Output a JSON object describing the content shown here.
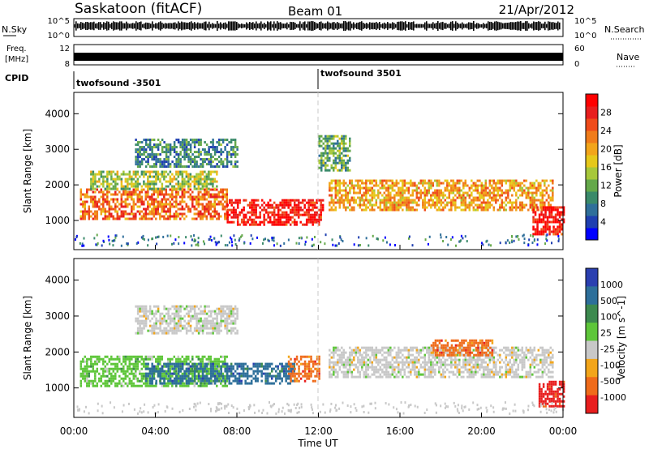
{
  "header": {
    "station": "Saskatoon (fitACF)",
    "beam": "Beam 01",
    "date": "21/Apr/2012"
  },
  "noise_panel": {
    "left_label": "N.Sky",
    "right_label": "N.Search",
    "ticks_left": [
      "10^5",
      "10^0"
    ],
    "ticks_right": [
      "10^5",
      "10^0"
    ]
  },
  "freq_panel": {
    "label_line1": "Freq.",
    "label_line2": "[MHz]",
    "ticks_left": [
      "12",
      "8"
    ],
    "ticks_right": [
      "60",
      "0"
    ],
    "nave_label": "Nave"
  },
  "cpid_panel": {
    "label": "CPID",
    "programs": [
      {
        "name": "twofsound -3501",
        "start_hour": 0
      },
      {
        "name": "twofsound 3501",
        "start_hour": 12
      }
    ]
  },
  "x_axis": {
    "label": "Time UT",
    "ticks": [
      {
        "hour": 0,
        "label": "00:00"
      },
      {
        "hour": 4,
        "label": "04:00"
      },
      {
        "hour": 8,
        "label": "08:00"
      },
      {
        "hour": 12,
        "label": "12:00"
      },
      {
        "hour": 16,
        "label": "16:00"
      },
      {
        "hour": 20,
        "label": "20:00"
      },
      {
        "hour": 24,
        "label": "00:00"
      }
    ]
  },
  "chart_data": [
    {
      "type": "heatmap",
      "quantity": "Power",
      "ylabel": "Slant Range [km]",
      "yticks": [
        1000,
        2000,
        3000,
        4000
      ],
      "ylim": [
        180,
        4600
      ],
      "xlim_hours": [
        0,
        24
      ],
      "colorbar": {
        "label": "Power [dB]",
        "ticks": [
          "4",
          "8",
          "12",
          "16",
          "20",
          "24",
          "28"
        ],
        "colors": [
          "#0000ff",
          "#1f3fb0",
          "#2f6f9a",
          "#3a8a6a",
          "#64a84a",
          "#a7c83a",
          "#e6c81a",
          "#f2a51a",
          "#f07c1a",
          "#ef4b1a",
          "#e81e1e",
          "#ff0000"
        ]
      },
      "bands": [
        {
          "hour_start": 0.3,
          "hour_end": 7.5,
          "range_low": 1050,
          "range_high": 1900,
          "level": 0.75
        },
        {
          "hour_start": 7.5,
          "hour_end": 12.2,
          "range_low": 900,
          "range_high": 1600,
          "level": 0.95
        },
        {
          "hour_start": 0.8,
          "hour_end": 7.0,
          "range_low": 1900,
          "range_high": 2400,
          "level": 0.45
        },
        {
          "hour_start": 12.5,
          "hour_end": 23.5,
          "range_low": 1300,
          "range_high": 2150,
          "level": 0.65
        },
        {
          "hour_start": 3.0,
          "hour_end": 8.0,
          "range_low": 2500,
          "range_high": 3300,
          "level": 0.25
        },
        {
          "hour_start": 12.0,
          "hour_end": 13.5,
          "range_low": 2400,
          "range_high": 3400,
          "level": 0.35
        },
        {
          "hour_start": 22.5,
          "hour_end": 24.0,
          "range_low": 600,
          "range_high": 1400,
          "level": 0.95
        }
      ]
    },
    {
      "type": "heatmap",
      "quantity": "Velocity",
      "ylabel": "Slant Range [km]",
      "yticks": [
        1000,
        2000,
        3000,
        4000
      ],
      "ylim": [
        180,
        4600
      ],
      "xlim_hours": [
        0,
        24
      ],
      "colorbar": {
        "label": "Velocity [m s^-1]",
        "ticks": [
          "1000",
          "500",
          "100",
          "25",
          "-25",
          "-100",
          "-500",
          "-1000"
        ],
        "colors": [
          "#2a3fb0",
          "#2d6f9a",
          "#3d8a4f",
          "#5ec63a",
          "#c8c8c8",
          "#f2a51a",
          "#ef6b1a",
          "#e81e1e"
        ]
      },
      "bands": [
        {
          "hour_start": 0.3,
          "hour_end": 7.5,
          "range_low": 1050,
          "range_high": 1900,
          "value": 25
        },
        {
          "hour_start": 3.5,
          "hour_end": 10.8,
          "range_low": 1100,
          "range_high": 1700,
          "value": 300
        },
        {
          "hour_start": 10.5,
          "hour_end": 12.0,
          "range_low": 1200,
          "range_high": 1900,
          "value": -200
        },
        {
          "hour_start": 12.5,
          "hour_end": 23.5,
          "range_low": 1300,
          "range_high": 2150,
          "value": 10
        },
        {
          "hour_start": 17.5,
          "hour_end": 20.5,
          "range_low": 1900,
          "range_high": 2350,
          "value": -120
        },
        {
          "hour_start": 22.8,
          "hour_end": 24.0,
          "range_low": 500,
          "range_high": 1200,
          "value": -600
        },
        {
          "hour_start": 3.0,
          "hour_end": 8.0,
          "range_low": 2500,
          "range_high": 3300,
          "value": 5
        }
      ]
    }
  ]
}
